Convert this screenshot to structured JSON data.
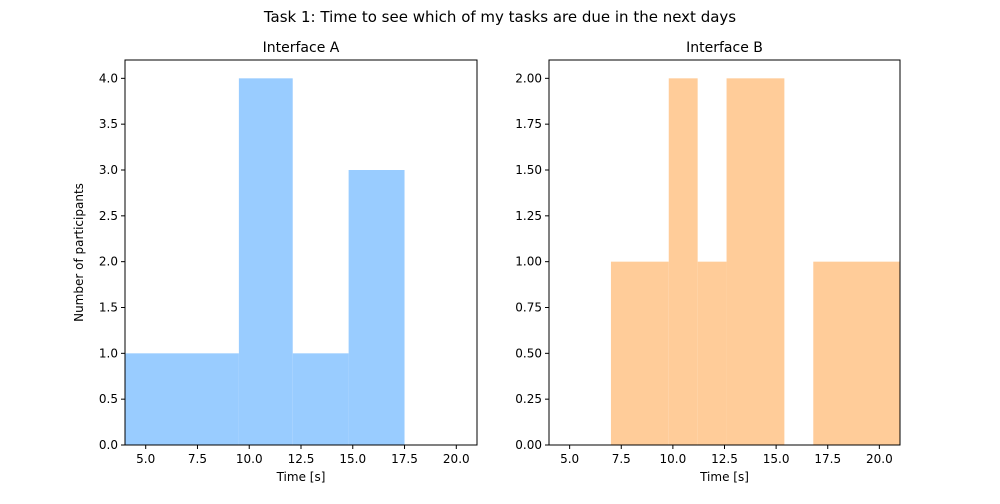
{
  "figure": {
    "title": "Task 1: Time to see which of my tasks are due in the next days"
  },
  "chart_data": [
    {
      "type": "bar",
      "title": "Interface A",
      "xlabel": "Time [s]",
      "ylabel": "Number of participants",
      "xlim": [
        4.0,
        21.0
      ],
      "ylim": [
        0,
        4.2
      ],
      "x_ticks": [
        5.0,
        7.5,
        10.0,
        12.5,
        15.0,
        17.5,
        20.0
      ],
      "x_tick_labels": [
        "5.0",
        "7.5",
        "10.0",
        "12.5",
        "15.0",
        "17.5",
        "20.0"
      ],
      "y_ticks": [
        0.0,
        0.5,
        1.0,
        1.5,
        2.0,
        2.5,
        3.0,
        3.5,
        4.0
      ],
      "y_tick_labels": [
        "0.0",
        "0.5",
        "1.0",
        "1.5",
        "2.0",
        "2.5",
        "3.0",
        "3.5",
        "4.0"
      ],
      "bins": [
        {
          "x0": 4.0,
          "x1": 9.5,
          "count": 1
        },
        {
          "x0": 9.5,
          "x1": 12.1,
          "count": 4
        },
        {
          "x0": 12.1,
          "x1": 14.8,
          "count": 1
        },
        {
          "x0": 14.8,
          "x1": 17.5,
          "count": 3
        }
      ],
      "color": "#99ccff",
      "grid": false,
      "legend": "none"
    },
    {
      "type": "bar",
      "title": "Interface B",
      "xlabel": "Time [s]",
      "ylabel": "",
      "xlim": [
        4.0,
        21.0
      ],
      "ylim": [
        0,
        2.1
      ],
      "x_ticks": [
        5.0,
        7.5,
        10.0,
        12.5,
        15.0,
        17.5,
        20.0
      ],
      "x_tick_labels": [
        "5.0",
        "7.5",
        "10.0",
        "12.5",
        "15.0",
        "17.5",
        "20.0"
      ],
      "y_ticks": [
        0.0,
        0.25,
        0.5,
        0.75,
        1.0,
        1.25,
        1.5,
        1.75,
        2.0
      ],
      "y_tick_labels": [
        "0.00",
        "0.25",
        "0.50",
        "0.75",
        "1.00",
        "1.25",
        "1.50",
        "1.75",
        "2.00"
      ],
      "bins": [
        {
          "x0": 7.0,
          "x1": 9.8,
          "count": 1
        },
        {
          "x0": 9.8,
          "x1": 11.2,
          "count": 2
        },
        {
          "x0": 11.2,
          "x1": 12.6,
          "count": 1
        },
        {
          "x0": 12.6,
          "x1": 15.4,
          "count": 2
        },
        {
          "x0": 15.4,
          "x1": 16.8,
          "count": 0
        },
        {
          "x0": 16.8,
          "x1": 21.0,
          "count": 1
        }
      ],
      "color": "#ffcc99",
      "grid": false,
      "legend": "none"
    }
  ]
}
